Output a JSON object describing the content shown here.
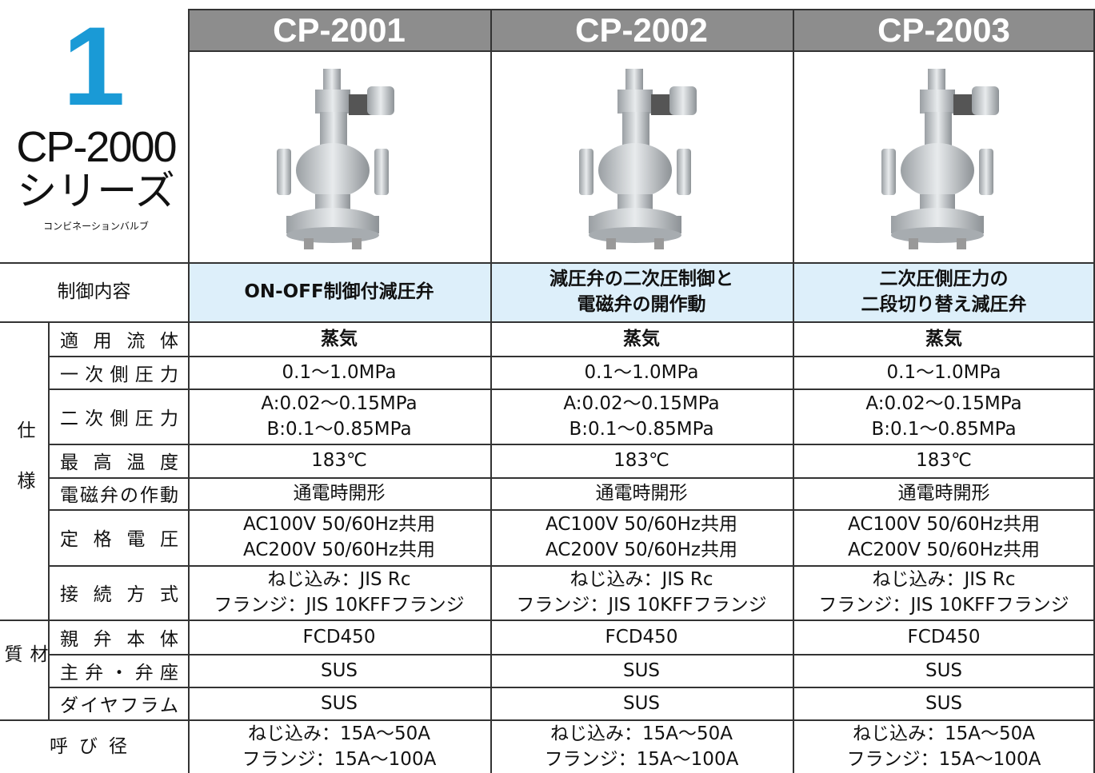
{
  "series_number": "1",
  "series_name": "CP-2000",
  "series_suffix": "シリーズ",
  "series_subtitle": "コンビネーションバルブ",
  "models": [
    "CP-2001",
    "CP-2002",
    "CP-2003"
  ],
  "control": {
    "label": "制御内容",
    "values": [
      [
        "ON-OFF制御付減圧弁"
      ],
      [
        "減圧弁の二次圧制御と",
        "電磁弁の開作動"
      ],
      [
        "二次圧側圧力の",
        "二段切り替え減圧弁"
      ]
    ]
  },
  "groups": [
    {
      "label": "仕様",
      "rows": [
        {
          "label": "適用流体",
          "values": [
            [
              "蒸気"
            ],
            [
              "蒸気"
            ],
            [
              "蒸気"
            ]
          ]
        },
        {
          "label": "一次側圧力",
          "values": [
            [
              "0.1〜1.0MPa"
            ],
            [
              "0.1〜1.0MPa"
            ],
            [
              "0.1〜1.0MPa"
            ]
          ]
        },
        {
          "label": "二次側圧力",
          "values": [
            [
              "A:0.02〜0.15MPa",
              "B:0.1〜0.85MPa"
            ],
            [
              "A:0.02〜0.15MPa",
              "B:0.1〜0.85MPa"
            ],
            [
              "A:0.02〜0.15MPa",
              "B:0.1〜0.85MPa"
            ]
          ]
        },
        {
          "label": "最高温度",
          "values": [
            [
              "183℃"
            ],
            [
              "183℃"
            ],
            [
              "183℃"
            ]
          ]
        },
        {
          "label": "電磁弁の作動",
          "values": [
            [
              "通電時開形"
            ],
            [
              "通電時開形"
            ],
            [
              "通電時開形"
            ]
          ]
        },
        {
          "label": "定格電圧",
          "values": [
            [
              "AC100V 50/60Hz共用",
              "AC200V 50/60Hz共用"
            ],
            [
              "AC100V 50/60Hz共用",
              "AC200V 50/60Hz共用"
            ],
            [
              "AC100V 50/60Hz共用",
              "AC200V 50/60Hz共用"
            ]
          ]
        },
        {
          "label": "接続方式",
          "values": [
            [
              "ねじ込み：JIS Rc",
              "フランジ：JIS 10KFFフランジ"
            ],
            [
              "ねじ込み：JIS Rc",
              "フランジ：JIS 10KFFフランジ"
            ],
            [
              "ねじ込み：JIS Rc",
              "フランジ：JIS 10KFFフランジ"
            ]
          ]
        }
      ]
    },
    {
      "label": "材質",
      "rows": [
        {
          "label": "親弁本体",
          "values": [
            [
              "FCD450"
            ],
            [
              "FCD450"
            ],
            [
              "FCD450"
            ]
          ]
        },
        {
          "label": "主弁・弁座",
          "values": [
            [
              "SUS"
            ],
            [
              "SUS"
            ],
            [
              "SUS"
            ]
          ]
        },
        {
          "label": "ダイヤフラム",
          "values": [
            [
              "SUS"
            ],
            [
              "SUS"
            ],
            [
              "SUS"
            ]
          ]
        }
      ]
    }
  ],
  "nominal_size": {
    "label": "呼び径",
    "values": [
      [
        "ねじ込み：15A〜50A",
        "フランジ：15A〜100A"
      ],
      [
        "ねじ込み：15A〜50A",
        "フランジ：15A〜100A"
      ],
      [
        "ねじ込み：15A〜50A",
        "フランジ：15A〜100A"
      ]
    ]
  }
}
